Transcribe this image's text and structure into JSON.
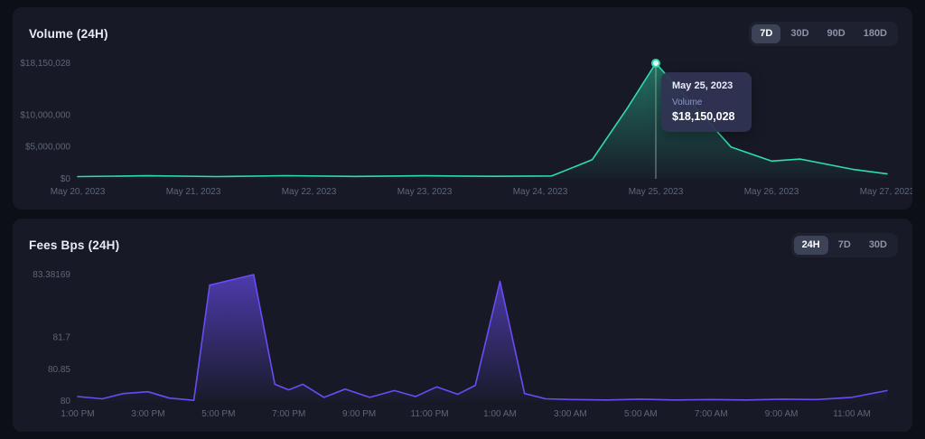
{
  "volume_panel": {
    "title": "Volume (24H)",
    "ranges": [
      {
        "label": "7D",
        "active": true
      },
      {
        "label": "30D",
        "active": false
      },
      {
        "label": "90D",
        "active": false
      },
      {
        "label": "180D",
        "active": false
      }
    ],
    "tooltip": {
      "date": "May 25, 2023",
      "series_label": "Volume",
      "value": "$18,150,028"
    }
  },
  "fees_panel": {
    "title": "Fees Bps (24H)",
    "ranges": [
      {
        "label": "24H",
        "active": true
      },
      {
        "label": "7D",
        "active": false
      },
      {
        "label": "30D",
        "active": false
      }
    ]
  },
  "chart_data": [
    {
      "type": "area",
      "title": "Volume (24H)",
      "series_name": "Volume",
      "color": "#30dcab",
      "fill_opacity": 0.45,
      "ylim": [
        0,
        18150028
      ],
      "grid": false,
      "legend": false,
      "yticks": [
        {
          "label": "$18,150,028",
          "value": 18150028
        },
        {
          "label": "$10,000,000",
          "value": 10000000
        },
        {
          "label": "$5,000,000",
          "value": 5000000
        },
        {
          "label": "$0",
          "value": 0
        }
      ],
      "x_labels": [
        {
          "label": "May 20, 2023",
          "pos": 0
        },
        {
          "label": "May 21, 2023",
          "pos": 1
        },
        {
          "label": "May 22, 2023",
          "pos": 2
        },
        {
          "label": "May 23, 2023",
          "pos": 3
        },
        {
          "label": "May 24, 2023",
          "pos": 4
        },
        {
          "label": "May 25, 2023",
          "pos": 5
        },
        {
          "label": "May 26, 2023",
          "pos": 6
        },
        {
          "label": "May 27, 2023",
          "pos": 7
        }
      ],
      "points": [
        [
          0,
          350000
        ],
        [
          0.6,
          480000
        ],
        [
          1.2,
          360000
        ],
        [
          1.8,
          500000
        ],
        [
          2.4,
          380000
        ],
        [
          3,
          480000
        ],
        [
          3.6,
          400000
        ],
        [
          4.1,
          450000
        ],
        [
          4.45,
          3000000
        ],
        [
          4.75,
          11000000
        ],
        [
          5,
          18150028
        ],
        [
          5.65,
          5000000
        ],
        [
          6,
          2800000
        ],
        [
          6.25,
          3100000
        ],
        [
          6.7,
          1500000
        ],
        [
          7,
          800000
        ]
      ],
      "marker": {
        "x": 5,
        "value": 18150028
      }
    },
    {
      "type": "area",
      "title": "Fees Bps (24H)",
      "series_name": "Fees Bps",
      "color": "#6a4cf5",
      "fill_opacity": 0.65,
      "ylim": [
        80,
        83.38169
      ],
      "grid": false,
      "legend": false,
      "yticks": [
        {
          "label": "83.38169",
          "value": 83.38169
        },
        {
          "label": "81.7",
          "value": 81.7
        },
        {
          "label": "80.85",
          "value": 80.85
        },
        {
          "label": "80",
          "value": 80
        }
      ],
      "x_labels": [
        {
          "label": "1:00 PM",
          "pos": 0
        },
        {
          "label": "3:00 PM",
          "pos": 2
        },
        {
          "label": "5:00 PM",
          "pos": 4
        },
        {
          "label": "7:00 PM",
          "pos": 6
        },
        {
          "label": "9:00 PM",
          "pos": 8
        },
        {
          "label": "11:00 PM",
          "pos": 10
        },
        {
          "label": "1:00 AM",
          "pos": 12
        },
        {
          "label": "3:00 AM",
          "pos": 14
        },
        {
          "label": "5:00 AM",
          "pos": 16
        },
        {
          "label": "7:00 AM",
          "pos": 18
        },
        {
          "label": "9:00 AM",
          "pos": 20
        },
        {
          "label": "11:00 AM",
          "pos": 22
        }
      ],
      "points": [
        [
          0,
          80.12
        ],
        [
          0.7,
          80.06
        ],
        [
          1.3,
          80.2
        ],
        [
          2,
          80.25
        ],
        [
          2.6,
          80.08
        ],
        [
          3.3,
          80.02
        ],
        [
          3.75,
          83.1
        ],
        [
          5,
          83.38169
        ],
        [
          5.6,
          80.45
        ],
        [
          6,
          80.3
        ],
        [
          6.4,
          80.45
        ],
        [
          7,
          80.1
        ],
        [
          7.6,
          80.32
        ],
        [
          8.3,
          80.1
        ],
        [
          9,
          80.28
        ],
        [
          9.6,
          80.12
        ],
        [
          10.2,
          80.38
        ],
        [
          10.8,
          80.18
        ],
        [
          11.3,
          80.42
        ],
        [
          12,
          83.2
        ],
        [
          12.7,
          80.2
        ],
        [
          13.3,
          80.06
        ],
        [
          14,
          80.04
        ],
        [
          15,
          80.03
        ],
        [
          16,
          80.05
        ],
        [
          17,
          80.03
        ],
        [
          18,
          80.04
        ],
        [
          19,
          80.03
        ],
        [
          20,
          80.05
        ],
        [
          21,
          80.04
        ],
        [
          22,
          80.1
        ],
        [
          23,
          80.28
        ]
      ]
    }
  ]
}
